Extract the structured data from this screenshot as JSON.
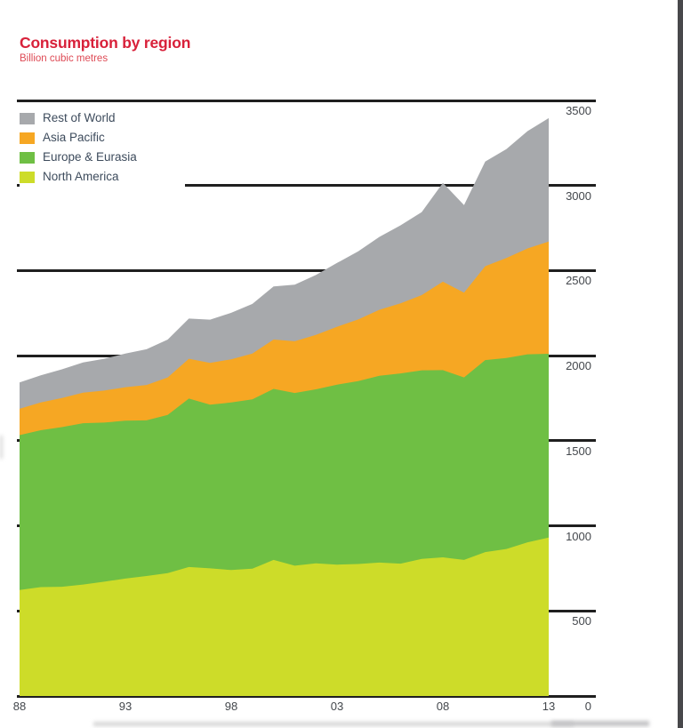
{
  "page": {
    "title": "Consumption by region",
    "subtitle": "Billion cubic metres"
  },
  "colors": {
    "title_text": "#d8213a",
    "subtitle_text": "#de4a55",
    "legend_text": "#3d4b5c",
    "axis_text": "#43474c",
    "gridline": "#1f1f1f",
    "page_edge": "#48484b"
  },
  "chart_data": {
    "type": "area",
    "stacked": true,
    "title": "Consumption by region",
    "subtitle": "Billion cubic metres",
    "unit": "billion cubic metres",
    "grid": "horizontal",
    "legend_position": "top-left",
    "y_axis_side": "right",
    "ylim": [
      0,
      3500
    ],
    "y_ticks": [
      3500,
      3000,
      2500,
      2000,
      1500,
      1000,
      500,
      0
    ],
    "x_ticks": [
      {
        "label": "88",
        "year": 1988
      },
      {
        "label": "93",
        "year": 1993
      },
      {
        "label": "98",
        "year": 1998
      },
      {
        "label": "03",
        "year": 2003
      },
      {
        "label": "08",
        "year": 2008
      },
      {
        "label": "13",
        "year": 2013
      }
    ],
    "years": [
      1988,
      1989,
      1990,
      1991,
      1992,
      1993,
      1994,
      1995,
      1996,
      1997,
      1998,
      1999,
      2000,
      2001,
      2002,
      2003,
      2004,
      2005,
      2006,
      2007,
      2008,
      2009,
      2010,
      2011,
      2012,
      2013
    ],
    "series": [
      {
        "name": "North America",
        "color": "#cddc29",
        "values": [
          623,
          640,
          642,
          655,
          672,
          690,
          705,
          722,
          758,
          750,
          740,
          748,
          800,
          766,
          780,
          772,
          776,
          784,
          778,
          806,
          815,
          800,
          846,
          864,
          903,
          931
        ]
      },
      {
        "name": "Europe & Eurasia",
        "color": "#6fbf44",
        "values": [
          910,
          922,
          938,
          948,
          935,
          928,
          915,
          930,
          990,
          962,
          985,
          995,
          1005,
          1015,
          1022,
          1058,
          1075,
          1098,
          1118,
          1108,
          1100,
          1072,
          1128,
          1122,
          1105,
          1080
        ]
      },
      {
        "name": "Asia Pacific",
        "color": "#f6a723",
        "values": [
          155,
          163,
          171,
          180,
          188,
          197,
          208,
          220,
          234,
          246,
          254,
          270,
          290,
          304,
          320,
          340,
          362,
          388,
          412,
          442,
          520,
          498,
          552,
          588,
          622,
          660
        ]
      },
      {
        "name": "Rest of World",
        "color": "#a7a9ac",
        "values": [
          155,
          160,
          169,
          177,
          187,
          197,
          210,
          223,
          236,
          254,
          273,
          291,
          312,
          332,
          352,
          375,
          400,
          428,
          458,
          488,
          580,
          515,
          615,
          640,
          690,
          725
        ]
      }
    ],
    "legend": [
      {
        "label": "Rest of World",
        "color": "#a7a9ac"
      },
      {
        "label": "Asia Pacific",
        "color": "#f6a723"
      },
      {
        "label": "Europe & Eurasia",
        "color": "#6fbf44"
      },
      {
        "label": "North America",
        "color": "#cddc29"
      }
    ]
  }
}
